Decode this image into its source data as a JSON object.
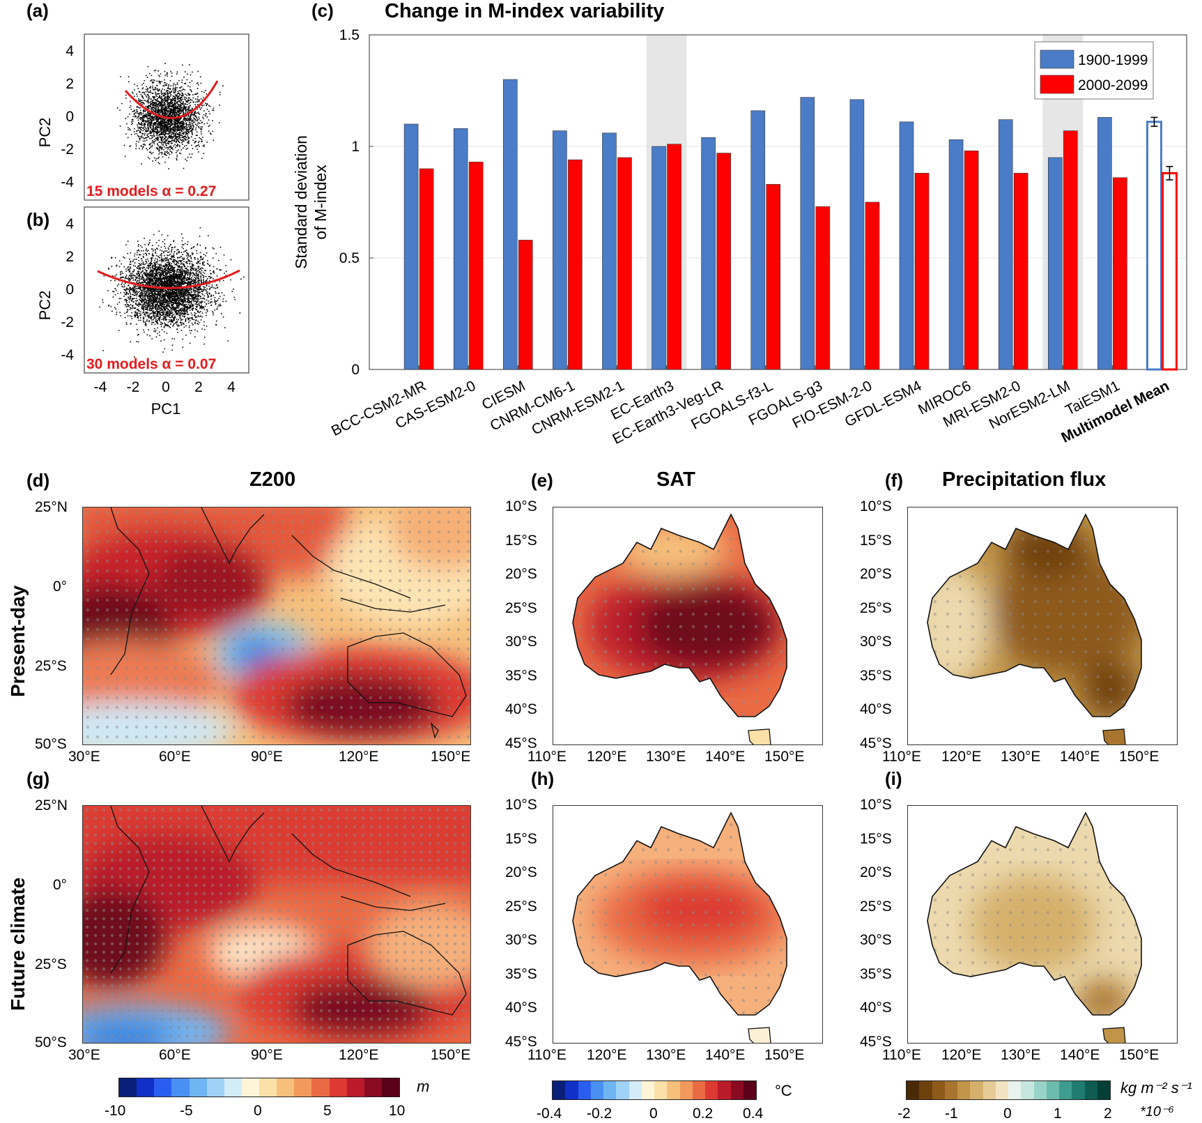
{
  "panels": {
    "a": {
      "label": "(a)",
      "annotation": "15 models α = 0.27"
    },
    "b": {
      "label": "(b)",
      "annotation": "30 models α = 0.07"
    },
    "scatter_axes": {
      "ylabel": "PC2",
      "xlabel": "PC1",
      "yticks": [
        "4",
        "2",
        "0",
        "-2",
        "-4"
      ],
      "xticks": [
        "-4",
        "-2",
        "0",
        "2",
        "4"
      ]
    },
    "c": {
      "label": "(c)",
      "title": "Change in M-index variability"
    },
    "d": {
      "label": "(d)",
      "title": "Z200"
    },
    "e": {
      "label": "(e)",
      "title": "SAT"
    },
    "f": {
      "label": "(f)",
      "title": "Precipitation flux"
    },
    "g": {
      "label": "(g)"
    },
    "h": {
      "label": "(h)"
    },
    "i": {
      "label": "(i)"
    }
  },
  "row_labels": {
    "present": "Present-day",
    "future": "Future climate"
  },
  "z200_map": {
    "lat_ticks": [
      "25°N",
      "0°",
      "25°S",
      "50°S"
    ],
    "lon_ticks": [
      "30°E",
      "60°E",
      "90°E",
      "120°E",
      "150°E"
    ]
  },
  "aus_map": {
    "lat_ticks": [
      "10°S",
      "15°S",
      "20°S",
      "25°S",
      "30°S",
      "35°S",
      "40°S",
      "45°S"
    ],
    "lon_ticks": [
      "110°E",
      "120°E",
      "130°E",
      "140°E",
      "150°E"
    ]
  },
  "colorbars": {
    "z200": {
      "unit": "m",
      "ticks": [
        "-10",
        "-5",
        "0",
        "5",
        "10"
      ],
      "colors": [
        "#0a1f7a",
        "#1030c8",
        "#2a5ef0",
        "#4a8ff2",
        "#6fb5f4",
        "#9fd2f6",
        "#d2ecf8",
        "#fdf5d6",
        "#fbe0a8",
        "#f6c07c",
        "#f29a5c",
        "#ea6a44",
        "#dc3a32",
        "#bb1a2a",
        "#8a0a22",
        "#5a0018"
      ]
    },
    "sat": {
      "unit": "°C",
      "ticks": [
        "-0.4",
        "-0.2",
        "0",
        "0.2",
        "0.4"
      ],
      "colors": [
        "#0a1f7a",
        "#1030c8",
        "#2a5ef0",
        "#4a8ff2",
        "#6fb5f4",
        "#9fd2f6",
        "#d2ecf8",
        "#fdf5d6",
        "#fbe0a8",
        "#f6c07c",
        "#f29a5c",
        "#ea6a44",
        "#dc3a32",
        "#bb1a2a",
        "#8a0a22",
        "#5a0018"
      ]
    },
    "precip": {
      "unit": "kg m⁻² s⁻¹",
      "scale": "*10⁻⁶",
      "ticks": [
        "-2",
        "-1",
        "0",
        "1",
        "2"
      ],
      "colors": [
        "#4a2a06",
        "#6e410c",
        "#8e5a1a",
        "#a9752e",
        "#c19447",
        "#d5b06c",
        "#e6cb97",
        "#f2e3c2",
        "#e9f2ee",
        "#c6e6de",
        "#99d3c7",
        "#6cbcad",
        "#3e9d8f",
        "#1e7c70",
        "#0e5c52",
        "#053f38"
      ]
    }
  },
  "chart_data": {
    "type": "bar",
    "title": "Change in M-index variability",
    "ylabel": "Standard deviation of M-index",
    "ylim": [
      0,
      1.5
    ],
    "yticks": [
      0,
      0.5,
      1,
      1.5
    ],
    "ytick_labels": [
      "0",
      "0.5",
      "1",
      "1.5"
    ],
    "grid": true,
    "legend_position": "top-right",
    "categories": [
      "BCC-CSM2-MR",
      "CAS-ESM2-0",
      "CIESM",
      "CNRM-CM6-1",
      "CNRM-ESM2-1",
      "EC-Earth3",
      "EC-Earth3-Veg-LR",
      "FGOALS-f3-L",
      "FGOALS-g3",
      "FIO-ESM-2-0",
      "GFDL-ESM4",
      "MIROC6",
      "MRI-ESM2-0",
      "NorESM2-LM",
      "TaiESM1",
      "Multimodel Mean"
    ],
    "highlighted_categories": [
      "EC-Earth3",
      "NorESM2-LM"
    ],
    "series": [
      {
        "name": "1900-1999",
        "color": "#4a7cc7",
        "values": [
          1.1,
          1.08,
          1.3,
          1.07,
          1.06,
          1.0,
          1.04,
          1.16,
          1.22,
          1.21,
          1.11,
          1.03,
          1.12,
          0.95,
          1.13,
          1.11
        ],
        "error": [
          null,
          null,
          null,
          null,
          null,
          null,
          null,
          null,
          null,
          null,
          null,
          null,
          null,
          null,
          null,
          0.02
        ]
      },
      {
        "name": "2000-2099",
        "color": "#ff0000",
        "values": [
          0.9,
          0.93,
          0.58,
          0.94,
          0.95,
          1.01,
          0.97,
          0.83,
          0.73,
          0.75,
          0.88,
          0.98,
          0.88,
          1.07,
          0.86,
          0.88
        ],
        "error": [
          null,
          null,
          null,
          null,
          null,
          null,
          null,
          null,
          null,
          null,
          null,
          null,
          null,
          null,
          null,
          0.03
        ]
      }
    ]
  }
}
